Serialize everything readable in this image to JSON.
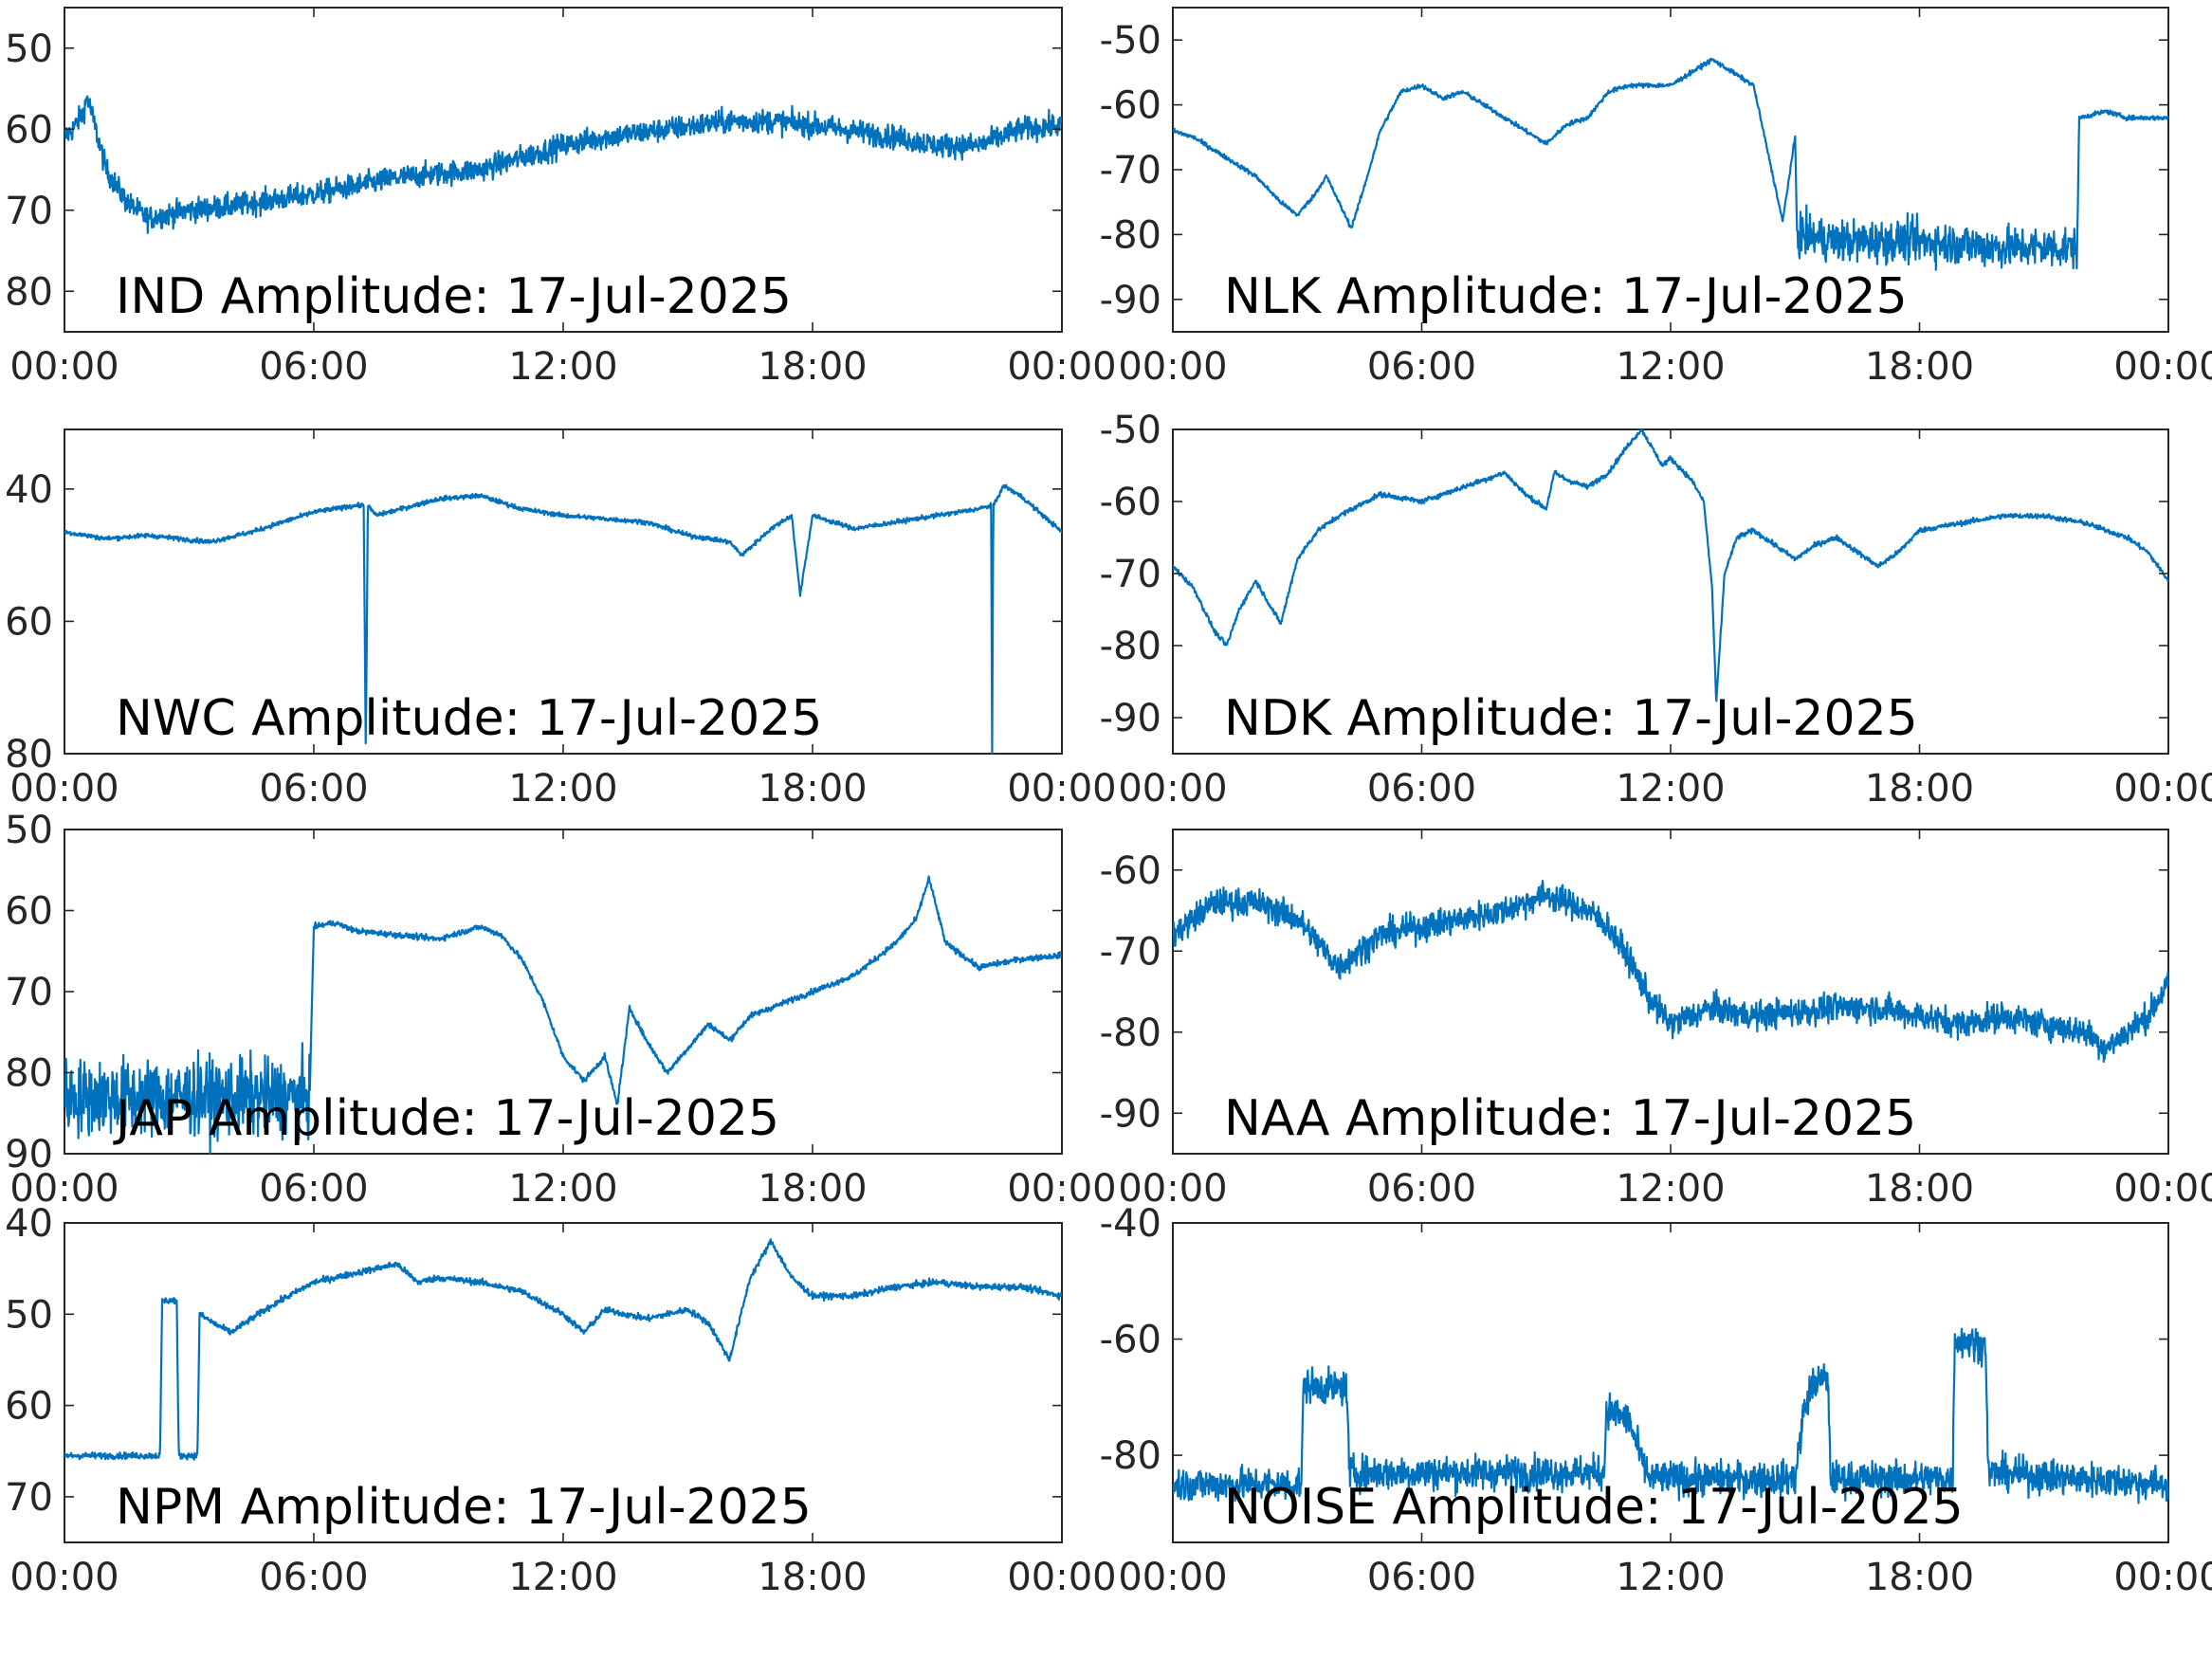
{
  "figure": {
    "line_color": "#0072BD",
    "axis_color": "#262626"
  },
  "chart_data": [
    {
      "type": "line",
      "title": "IND Amplitude: 17-Jul-2025",
      "x_tick_labels": [
        "00:00",
        "06:00",
        "12:00",
        "18:00",
        "00:00"
      ],
      "x_range_hours": [
        0,
        24
      ],
      "ylim": [
        -85,
        -45
      ],
      "y_ticks": [
        -50,
        -60,
        -70,
        -80
      ],
      "y_tick_labels": [
        "50",
        "60",
        "70",
        "80"
      ],
      "noise_band_db": 5,
      "series": [
        {
          "x_hours": [
            0,
            0.2,
            0.45,
            0.55,
            0.75,
            1.0,
            1.5,
            2.0,
            3.0,
            4.0,
            6.0,
            8.0,
            10.0,
            12.0,
            13.0,
            14.5,
            16.0,
            17.0,
            18.0,
            20.0,
            21.0,
            22.0,
            23.0,
            24.0
          ],
          "y": [
            -61,
            -60,
            -58,
            -56,
            -60,
            -65,
            -69,
            -71,
            -70,
            -69.5,
            -68,
            -66,
            -65,
            -62,
            -61,
            -60,
            -59,
            -59,
            -59.5,
            -61,
            -62,
            -62,
            -60,
            -59.5
          ]
        }
      ]
    },
    {
      "type": "line",
      "title": "NLK Amplitude: 17-Jul-2025",
      "x_tick_labels": [
        "00:00",
        "06:00",
        "12:00",
        "18:00",
        "00:00"
      ],
      "x_range_hours": [
        0,
        24
      ],
      "ylim": [
        -95,
        -45
      ],
      "y_ticks": [
        -50,
        -60,
        -70,
        -80,
        -90
      ],
      "y_tick_labels": [
        "-50",
        "-60",
        "-70",
        "-80",
        "-90"
      ],
      "series": [
        {
          "x_hours": [
            0,
            0.5,
            1.0,
            2.0,
            2.6,
            3.0,
            3.4,
            3.7,
            4.0,
            4.3,
            4.6,
            5.0,
            5.5,
            6.0,
            6.5,
            7.0,
            8.0,
            9.0,
            9.5,
            10.0,
            10.5,
            11.0,
            12.0,
            12.5,
            13.0,
            13.5,
            14.0,
            14.2,
            14.5,
            14.7,
            15.0,
            15.05,
            16.0,
            18.0,
            20.0,
            21.5,
            21.8,
            21.85,
            22.5,
            23.0,
            24.0
          ],
          "y": [
            -64,
            -65,
            -67,
            -71,
            -75,
            -77,
            -74,
            -71,
            -75,
            -79,
            -73,
            -64,
            -58,
            -57,
            -59,
            -58,
            -62,
            -66,
            -63,
            -62,
            -58,
            -57,
            -57,
            -55,
            -53,
            -55,
            -57,
            -63,
            -72,
            -78,
            -65,
            -80,
            -81,
            -81,
            -82,
            -82,
            -82,
            -62,
            -61,
            -62,
            -62
          ]
        }
      ],
      "noisy_segment_hours": [
        15.05,
        21.8
      ],
      "noisy_segment_band_db": 11
    },
    {
      "type": "line",
      "title": "NWC Amplitude: 17-Jul-2025",
      "x_tick_labels": [
        "00:00",
        "06:00",
        "12:00",
        "18:00",
        "00:00"
      ],
      "x_range_hours": [
        0,
        24
      ],
      "ylim": [
        -80,
        -31
      ],
      "y_ticks": [
        -40,
        -60,
        -80
      ],
      "y_tick_labels": [
        "40",
        "60",
        "80"
      ],
      "series": [
        {
          "x_hours": [
            0,
            1.0,
            2.0,
            3.5,
            4.5,
            6.0,
            7.0,
            7.2,
            7.25,
            7.3,
            7.5,
            9.0,
            10.0,
            11.0,
            12.0,
            14.0,
            15.0,
            16.0,
            16.3,
            17.0,
            17.5,
            17.7,
            18.0,
            19.0,
            20.0,
            21.0,
            22.0,
            22.3,
            22.32,
            22.35,
            22.6,
            23.0,
            24.0
          ],
          "y": [
            -46.5,
            -47.5,
            -47,
            -48,
            -46.5,
            -43.5,
            -42.5,
            -42.5,
            -80,
            -42.5,
            -44,
            -41.5,
            -41,
            -43,
            -44,
            -45,
            -47,
            -48,
            -50,
            -46,
            -44,
            -56,
            -44,
            -46,
            -45,
            -44,
            -43,
            -42.5,
            -80,
            -42.5,
            -39.5,
            -41,
            -46.5
          ]
        }
      ]
    },
    {
      "type": "line",
      "title": "NDK Amplitude: 17-Jul-2025",
      "x_tick_labels": [
        "00:00",
        "06:00",
        "12:00",
        "18:00",
        "00:00"
      ],
      "x_range_hours": [
        0,
        24
      ],
      "ylim": [
        -95,
        -50
      ],
      "y_ticks": [
        -50,
        -60,
        -70,
        -80,
        -90
      ],
      "y_tick_labels": [
        "-50",
        "-60",
        "-70",
        "-80",
        "-90"
      ],
      "series": [
        {
          "x_hours": [
            0,
            0.5,
            1.0,
            1.3,
            1.6,
            2.0,
            2.3,
            2.6,
            3.0,
            3.5,
            4.0,
            5.0,
            6.0,
            7.0,
            8.0,
            8.5,
            9.0,
            9.2,
            9.5,
            10.0,
            10.5,
            11.0,
            11.3,
            11.8,
            12.0,
            12.5,
            12.8,
            13.0,
            13.1,
            13.3,
            13.6,
            14.0,
            15.0,
            15.5,
            16.0,
            16.5,
            17.0,
            17.5,
            18.0,
            19.0,
            20.0,
            21.0,
            22.0,
            23.0,
            23.5,
            24.0
          ],
          "y": [
            -69,
            -72,
            -78,
            -80,
            -75,
            -71,
            -74,
            -77,
            -68,
            -64,
            -62,
            -59,
            -60,
            -58,
            -56,
            -59,
            -61,
            -56,
            -57,
            -58,
            -56,
            -52,
            -50,
            -55,
            -54,
            -57,
            -60,
            -72,
            -88,
            -70,
            -65,
            -64,
            -68,
            -66,
            -65,
            -67,
            -69,
            -67,
            -64,
            -63,
            -62,
            -62,
            -63,
            -65,
            -67,
            -71
          ]
        }
      ]
    },
    {
      "type": "line",
      "title": "JAP Amplitude: 17-Jul-2025",
      "x_tick_labels": [
        "00:00",
        "06:00",
        "12:00",
        "18:00",
        "00:00"
      ],
      "x_range_hours": [
        0,
        24
      ],
      "ylim": [
        -90,
        -50
      ],
      "y_ticks": [
        -50,
        -60,
        -70,
        -80,
        -90
      ],
      "y_tick_labels": [
        "50",
        "60",
        "70",
        "80",
        "90"
      ],
      "series": [
        {
          "x_hours": [
            0,
            5.9,
            6.0,
            6.5,
            7.0,
            8.0,
            9.0,
            10.0,
            10.5,
            11.0,
            11.5,
            12.0,
            12.5,
            13.0,
            13.3,
            13.6,
            14.0,
            14.5,
            15.0,
            15.5,
            16.0,
            16.5,
            17.0,
            17.5,
            18.0,
            19.0,
            20.0,
            20.5,
            20.8,
            21.2,
            22.0,
            23.0,
            24.0
          ],
          "y": [
            -83,
            -83,
            -62,
            -61.5,
            -62.5,
            -63,
            -63.5,
            -62,
            -63,
            -66,
            -71,
            -78,
            -81,
            -78,
            -84,
            -72,
            -76,
            -80,
            -77,
            -74,
            -76,
            -73,
            -72,
            -71,
            -70,
            -68,
            -64,
            -61,
            -56,
            -64,
            -67,
            -66,
            -65.5
          ]
        }
      ],
      "noisy_segment_hours": [
        0,
        5.9
      ],
      "noisy_segment_band_db": 16
    },
    {
      "type": "line",
      "title": "NAA Amplitude: 17-Jul-2025",
      "x_tick_labels": [
        "00:00",
        "06:00",
        "12:00",
        "18:00",
        "00:00"
      ],
      "x_range_hours": [
        0,
        24
      ],
      "ylim": [
        -95,
        -55
      ],
      "y_ticks": [
        -60,
        -70,
        -80,
        -90
      ],
      "y_tick_labels": [
        "-60",
        "-70",
        "-80",
        "-90"
      ],
      "noise_band_db": 6,
      "series": [
        {
          "x_hours": [
            0,
            0.5,
            1.0,
            2.0,
            3.0,
            3.5,
            4.0,
            4.5,
            5.0,
            6.0,
            7.0,
            8.0,
            9.0,
            10.0,
            10.5,
            11.0,
            11.5,
            12.0,
            13.0,
            14.0,
            15.0,
            16.0,
            17.0,
            18.0,
            19.0,
            20.0,
            21.0,
            22.0,
            22.5,
            23.0,
            23.5,
            24.0
          ],
          "y": [
            -68,
            -66,
            -64,
            -64,
            -66,
            -69,
            -72,
            -70,
            -68,
            -67,
            -66,
            -65,
            -63,
            -65,
            -67,
            -71,
            -76,
            -79,
            -77,
            -78,
            -77.5,
            -77,
            -77,
            -78,
            -79,
            -78,
            -79,
            -80,
            -82,
            -80,
            -78,
            -74
          ]
        }
      ]
    },
    {
      "type": "line",
      "title": "NPM Amplitude: 17-Jul-2025",
      "x_tick_labels": [
        "00:00",
        "06:00",
        "12:00",
        "18:00",
        "00:00"
      ],
      "x_range_hours": [
        0,
        24
      ],
      "ylim": [
        -75,
        -40
      ],
      "y_ticks": [
        -40,
        -50,
        -60,
        -70
      ],
      "y_tick_labels": [
        "40",
        "50",
        "60",
        "70"
      ],
      "series": [
        {
          "x_hours": [
            0,
            2.3,
            2.35,
            2.7,
            2.75,
            3.2,
            3.25,
            3.6,
            4.0,
            5.0,
            6.0,
            7.0,
            8.0,
            8.5,
            9.0,
            10.0,
            11.0,
            12.0,
            12.5,
            13.0,
            14.0,
            15.0,
            15.5,
            16.0,
            16.5,
            17.0,
            17.5,
            18.0,
            19.0,
            20.0,
            21.0,
            22.0,
            23.0,
            24.0
          ],
          "y": [
            -65.5,
            -65.5,
            -48.5,
            -48.5,
            -65.5,
            -65.5,
            -50,
            -51,
            -52,
            -49,
            -46.5,
            -45.5,
            -44.5,
            -46.5,
            -46,
            -46.5,
            -47.5,
            -50,
            -52,
            -49.5,
            -50.5,
            -49.5,
            -51,
            -55,
            -46,
            -42,
            -46,
            -48,
            -48,
            -47,
            -46.5,
            -47,
            -47,
            -48
          ]
        }
      ]
    },
    {
      "type": "line",
      "title": "NOISE Amplitude: 17-Jul-2025",
      "x_tick_labels": [
        "00:00",
        "06:00",
        "12:00",
        "18:00",
        "00:00"
      ],
      "x_range_hours": [
        0,
        24
      ],
      "ylim": [
        -95,
        -40
      ],
      "y_ticks": [
        -40,
        -60,
        -80
      ],
      "y_tick_labels": [
        "-40",
        "-60",
        "-80"
      ],
      "noise_band_db": 10,
      "series": [
        {
          "x_hours": [
            0,
            3.1,
            3.15,
            4.2,
            4.25,
            10.4,
            10.45,
            11.0,
            11.3,
            11.5,
            15.0,
            15.2,
            15.4,
            15.6,
            15.8,
            15.85,
            18.8,
            18.85,
            19.6,
            19.65,
            24.0
          ],
          "y": [
            -85,
            -85,
            -68,
            -68.5,
            -83,
            -83,
            -72,
            -74,
            -81,
            -84,
            -84,
            -73,
            -68,
            -67,
            -67,
            -84,
            -84,
            -60,
            -61,
            -83,
            -85
          ]
        }
      ]
    }
  ]
}
